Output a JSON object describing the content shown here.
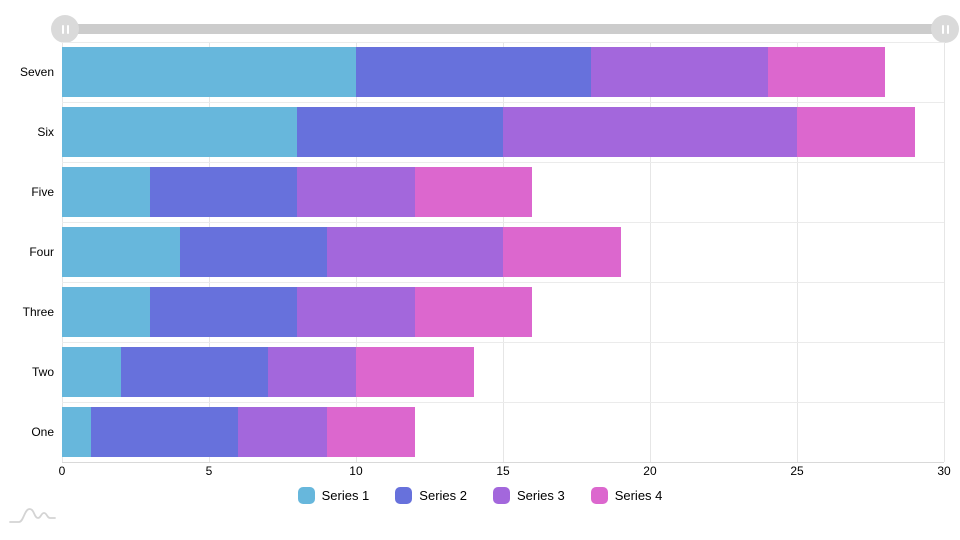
{
  "chart_data": {
    "type": "bar",
    "orientation": "horizontal",
    "stacked": true,
    "title": "",
    "xlabel": "",
    "ylabel": "",
    "xlim": [
      0,
      30
    ],
    "xticks": [
      0,
      5,
      10,
      15,
      20,
      25,
      30
    ],
    "grid": true,
    "legend_position": "bottom",
    "categories": [
      "Seven",
      "Six",
      "Five",
      "Four",
      "Three",
      "Two",
      "One"
    ],
    "series": [
      {
        "name": "Series 1",
        "color": "#67B7DC",
        "values": [
          10,
          8,
          3,
          4,
          3,
          2,
          1
        ]
      },
      {
        "name": "Series 2",
        "color": "#6771DC",
        "values": [
          8,
          7,
          5,
          5,
          5,
          5,
          5
        ]
      },
      {
        "name": "Series 3",
        "color": "#A367DC",
        "values": [
          6,
          10,
          4,
          6,
          4,
          3,
          3
        ]
      },
      {
        "name": "Series 4",
        "color": "#DC67CE",
        "values": [
          4,
          4,
          4,
          4,
          4,
          4,
          3
        ]
      }
    ]
  },
  "legend": {
    "items": [
      {
        "label": "Series 1",
        "color": "#67B7DC"
      },
      {
        "label": "Series 2",
        "color": "#6771DC"
      },
      {
        "label": "Series 3",
        "color": "#A367DC"
      },
      {
        "label": "Series 4",
        "color": "#DC67CE"
      }
    ]
  },
  "scrollbar": {
    "orientation": "horizontal",
    "track_color": "#cccccc",
    "handle_color": "#dadada",
    "grip_color": "#ffffff"
  },
  "branding": {
    "logo": "amcharts-logo",
    "color": "#d4d4d4"
  },
  "colors": {
    "background": "#ffffff",
    "grid_vertical": "#e6e6e6",
    "grid_horizontal": "#ebebeb",
    "axis_line": "#d9d9d9",
    "text": "#000000"
  }
}
